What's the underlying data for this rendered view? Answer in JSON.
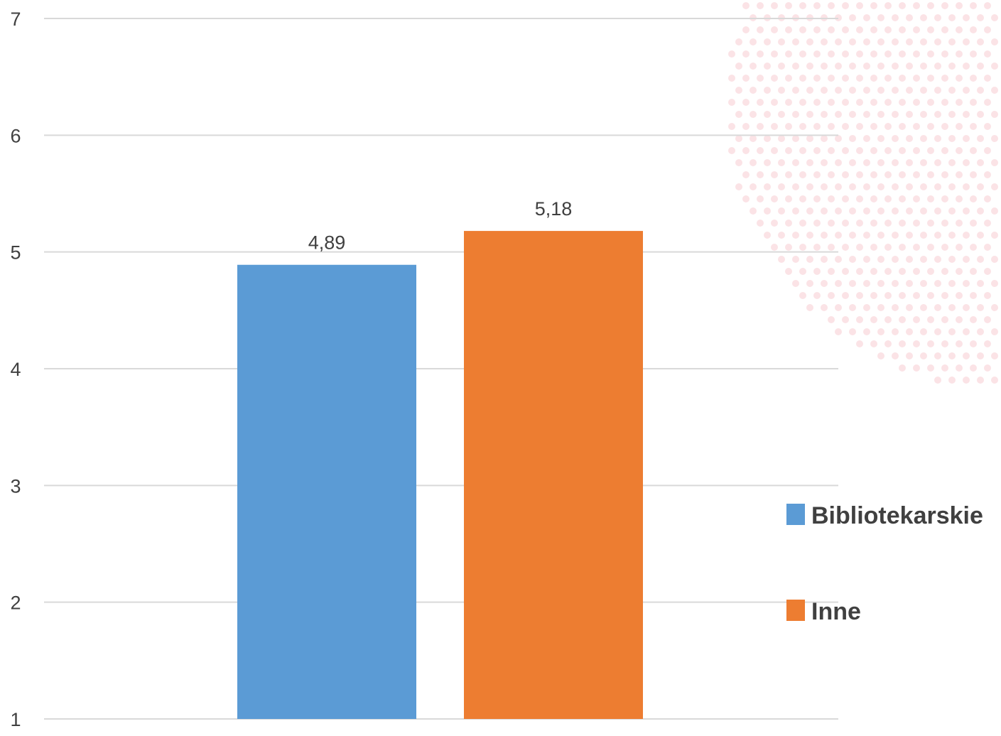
{
  "chart_data": {
    "type": "bar",
    "categories": [
      ""
    ],
    "series": [
      {
        "name": "Bibliotekarskie",
        "values": [
          4.89
        ],
        "label": "4,89",
        "color": "#5b9bd5"
      },
      {
        "name": "Inne",
        "values": [
          5.18
        ],
        "label": "5,18",
        "color": "#ed7d31"
      }
    ],
    "ylim": [
      1,
      7
    ],
    "yticks": [
      "1",
      "2",
      "3",
      "4",
      "5",
      "6",
      "7"
    ],
    "grid": true,
    "legend": "right",
    "title": "",
    "xlabel": "",
    "ylabel": ""
  },
  "colors": {
    "grid": "#d9d9d9",
    "text": "#404040",
    "decoration": "#fbe3e6"
  }
}
